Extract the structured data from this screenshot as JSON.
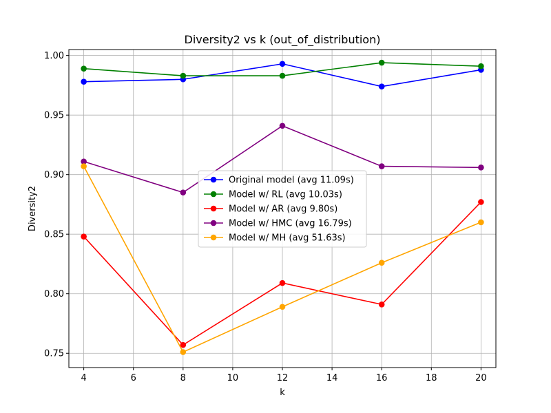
{
  "chart_data": {
    "type": "line",
    "title": "Diversity2 vs k (out_of_distribution)",
    "xlabel": "k",
    "ylabel": "Diversity2",
    "x": [
      4,
      8,
      12,
      16,
      20
    ],
    "xlim": [
      3.4,
      20.6
    ],
    "ylim": [
      0.738,
      1.005
    ],
    "xticks": [
      4,
      6,
      8,
      10,
      12,
      14,
      16,
      18,
      20
    ],
    "yticks": [
      0.75,
      0.8,
      0.85,
      0.9,
      0.95,
      1.0
    ],
    "ytick_labels": [
      "0.75",
      "0.80",
      "0.85",
      "0.90",
      "0.95",
      "1.00"
    ],
    "grid": true,
    "legend_position": "center",
    "series": [
      {
        "name": "Original model (avg 11.09s)",
        "color": "#0000ff",
        "values": [
          0.978,
          0.98,
          0.993,
          0.974,
          0.988
        ]
      },
      {
        "name": "Model w/ RL (avg 10.03s)",
        "color": "#008000",
        "values": [
          0.989,
          0.983,
          0.983,
          0.994,
          0.991
        ]
      },
      {
        "name": "Model w/ AR (avg 9.80s)",
        "color": "#ff0000",
        "values": [
          0.848,
          0.757,
          0.809,
          0.791,
          0.877
        ]
      },
      {
        "name": "Model w/ HMC (avg 16.79s)",
        "color": "#800080",
        "values": [
          0.911,
          0.885,
          0.941,
          0.907,
          0.906
        ]
      },
      {
        "name": "Model w/ MH (avg 51.63s)",
        "color": "#ffa500",
        "values": [
          0.907,
          0.751,
          0.789,
          0.826,
          0.86
        ]
      }
    ]
  }
}
